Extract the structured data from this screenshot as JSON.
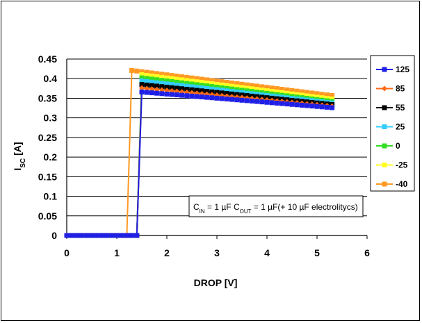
{
  "chart_data": {
    "type": "line",
    "xlabel": "DROP [V]",
    "ylabel_main": "I",
    "ylabel_sub": "SC",
    "ylabel_unit": " [A]",
    "xlim": [
      0,
      6
    ],
    "ylim": [
      0,
      0.45
    ],
    "x_ticks": [
      "0",
      "1",
      "2",
      "3",
      "4",
      "5",
      "6"
    ],
    "y_ticks": [
      "0",
      "0.05",
      "0.1",
      "0.15",
      "0.2",
      "0.25",
      "0.3",
      "0.35",
      "0.4",
      "0.45"
    ],
    "grid": "horizontal",
    "legend_position": "right",
    "annotation": {
      "c_in": "C",
      "c_in_sub": "IN",
      "c_in_val": " = 1 µF ",
      "c_out": "C",
      "c_out_sub": "OUT",
      "c_out_val": " = 1 µF(+ 10 µF electrolitycs)"
    },
    "x": [
      0,
      0.1,
      0.2,
      0.3,
      0.4,
      0.5,
      0.6,
      0.7,
      0.8,
      0.9,
      1.0,
      1.1,
      1.2,
      1.3,
      1.4,
      1.5,
      1.6,
      1.7,
      1.8,
      1.9,
      2.0,
      2.1,
      2.2,
      2.3,
      2.4,
      2.5,
      2.6,
      2.7,
      2.8,
      2.9,
      3.0,
      3.1,
      3.2,
      3.3,
      3.4,
      3.5,
      3.6,
      3.7,
      3.8,
      3.9,
      4.0,
      4.1,
      4.2,
      4.3,
      4.4,
      4.5,
      4.6,
      4.7,
      4.8,
      4.9,
      5.0,
      5.1,
      5.2,
      5.3
    ],
    "series": [
      {
        "name": "125",
        "color": "#1f1fe6",
        "marker": "square",
        "switch_at": 1.5,
        "start": 0.366,
        "end": 0.326
      },
      {
        "name": "85",
        "color": "#ff6a13",
        "marker": "diamond",
        "switch_at": 1.5,
        "start": 0.376,
        "end": 0.33
      },
      {
        "name": "55",
        "color": "#000000",
        "marker": "square",
        "switch_at": 1.5,
        "start": 0.385,
        "end": 0.334
      },
      {
        "name": "25",
        "color": "#33ccff",
        "marker": "square",
        "switch_at": 1.5,
        "start": 0.394,
        "end": 0.338
      },
      {
        "name": "0",
        "color": "#33dd22",
        "marker": "square",
        "switch_at": 1.5,
        "start": 0.402,
        "end": 0.342
      },
      {
        "name": "-25",
        "color": "#ffff22",
        "marker": "square",
        "switch_at": 1.5,
        "start": 0.41,
        "end": 0.348
      },
      {
        "name": "-40",
        "color": "#ff9922",
        "marker": "square",
        "switch_at": 1.3,
        "start": 0.421,
        "end": 0.357
      }
    ]
  }
}
